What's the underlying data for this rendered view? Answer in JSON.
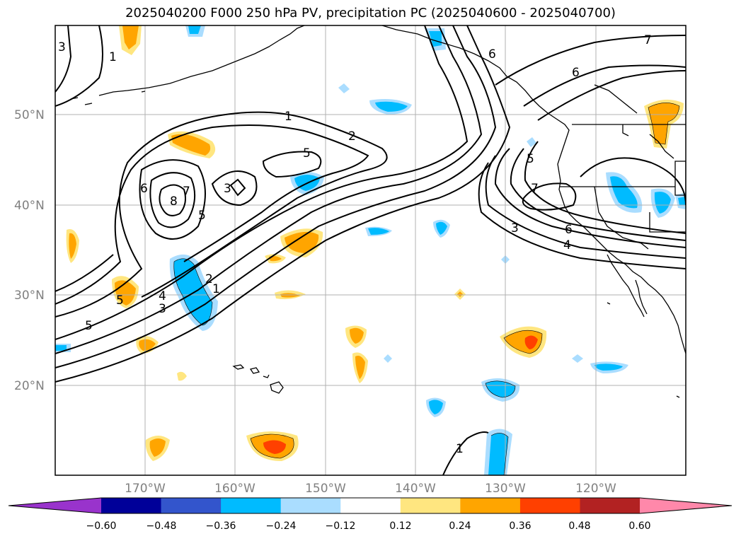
{
  "title": "2025040200 F000 250 hPa PV, precipitation PC (2025040600 - 2025040700)",
  "map": {
    "lon_range": [
      -180,
      -110
    ],
    "lat_range": [
      10,
      60
    ],
    "lat_labels": [
      "50°N",
      "40°N",
      "30°N",
      "20°N"
    ],
    "lon_labels": [
      "170°W",
      "160°W",
      "150°W",
      "140°W",
      "130°W",
      "120°W"
    ],
    "gridlines": true
  },
  "contours": {
    "variable": "250 hPa PV",
    "labels": [
      "3",
      "1",
      "7",
      "6",
      "6",
      "5",
      "1",
      "2",
      "5",
      "6",
      "7",
      "8",
      "5",
      "3",
      "5",
      "7",
      "3",
      "6",
      "4",
      "2",
      "1",
      "4",
      "3",
      "5",
      "1"
    ]
  },
  "colorbar": {
    "ticks": [
      "−0.60",
      "−0.48",
      "−0.36",
      "−0.24",
      "−0.12",
      "0.12",
      "0.24",
      "0.36",
      "0.48",
      "0.60"
    ],
    "colors": [
      "#9933cc",
      "#000099",
      "#3355cc",
      "#00bbff",
      "#aaddff",
      "#ffffff",
      "#ffe680",
      "#ffa500",
      "#ff4000",
      "#b22222",
      "#ff88aa"
    ]
  }
}
